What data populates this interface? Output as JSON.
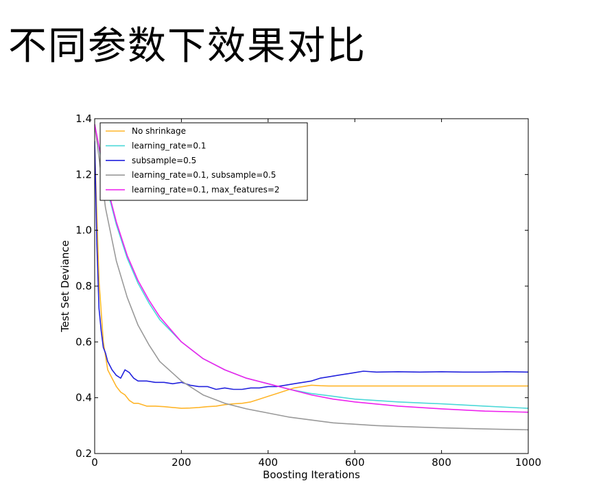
{
  "page": {
    "title": "不同参数下效果对比"
  },
  "chart_data": {
    "type": "line",
    "title": "",
    "xlabel": "Boosting Iterations",
    "ylabel": "Test Set Deviance",
    "xlim": [
      0,
      1000
    ],
    "ylim": [
      0.2,
      1.4
    ],
    "xticks": [
      0,
      200,
      400,
      600,
      800,
      1000
    ],
    "yticks": [
      0.2,
      0.4,
      0.6,
      0.8,
      1.0,
      1.2,
      1.4
    ],
    "ytick_labels": [
      "0.2",
      "0.4",
      "0.6",
      "0.8",
      "1.0",
      "1.2",
      "1.4"
    ],
    "grid": false,
    "legend_position": "top-left",
    "series": [
      {
        "name": "No shrinkage",
        "color": "#FFB529",
        "x": [
          0,
          10,
          20,
          30,
          40,
          50,
          60,
          70,
          80,
          90,
          100,
          120,
          140,
          160,
          180,
          200,
          220,
          240,
          260,
          280,
          300,
          320,
          340,
          360,
          380,
          400,
          420,
          440,
          460,
          480,
          500,
          520,
          540,
          560,
          600,
          700,
          800,
          900,
          1000
        ],
        "y": [
          1.3,
          0.82,
          0.6,
          0.5,
          0.47,
          0.44,
          0.42,
          0.41,
          0.39,
          0.38,
          0.38,
          0.37,
          0.37,
          0.368,
          0.365,
          0.362,
          0.363,
          0.365,
          0.368,
          0.37,
          0.375,
          0.378,
          0.38,
          0.385,
          0.395,
          0.405,
          0.415,
          0.425,
          0.435,
          0.44,
          0.445,
          0.443,
          0.442,
          0.442,
          0.442,
          0.442,
          0.442,
          0.442,
          0.442
        ]
      },
      {
        "name": "learning_rate=0.1",
        "color": "#4BD8D8",
        "x": [
          0,
          25,
          50,
          75,
          100,
          125,
          150,
          200,
          250,
          300,
          350,
          400,
          450,
          500,
          550,
          600,
          700,
          800,
          900,
          1000
        ],
        "y": [
          1.38,
          1.17,
          1.02,
          0.9,
          0.81,
          0.74,
          0.68,
          0.6,
          0.54,
          0.5,
          0.47,
          0.45,
          0.43,
          0.415,
          0.405,
          0.395,
          0.385,
          0.378,
          0.37,
          0.362
        ]
      },
      {
        "name": "subsample=0.5",
        "color": "#2222DD",
        "x": [
          0,
          5,
          10,
          15,
          20,
          25,
          30,
          40,
          50,
          60,
          70,
          80,
          90,
          100,
          120,
          140,
          160,
          180,
          200,
          220,
          240,
          260,
          280,
          300,
          320,
          340,
          360,
          380,
          400,
          420,
          440,
          460,
          480,
          500,
          520,
          540,
          560,
          580,
          600,
          620,
          650,
          700,
          750,
          800,
          850,
          900,
          950,
          1000
        ],
        "y": [
          1.32,
          0.95,
          0.72,
          0.64,
          0.58,
          0.56,
          0.53,
          0.5,
          0.48,
          0.47,
          0.5,
          0.49,
          0.47,
          0.46,
          0.46,
          0.455,
          0.455,
          0.45,
          0.455,
          0.445,
          0.44,
          0.44,
          0.43,
          0.435,
          0.43,
          0.43,
          0.435,
          0.435,
          0.44,
          0.44,
          0.445,
          0.45,
          0.455,
          0.46,
          0.47,
          0.475,
          0.48,
          0.485,
          0.49,
          0.495,
          0.492,
          0.493,
          0.492,
          0.493,
          0.492,
          0.492,
          0.493,
          0.492
        ]
      },
      {
        "name": "learning_rate=0.1, subsample=0.5",
        "color": "#999999",
        "x": [
          0,
          25,
          50,
          75,
          100,
          125,
          150,
          200,
          250,
          300,
          350,
          400,
          450,
          500,
          550,
          600,
          650,
          700,
          800,
          900,
          1000
        ],
        "y": [
          1.38,
          1.08,
          0.89,
          0.76,
          0.66,
          0.59,
          0.53,
          0.46,
          0.41,
          0.38,
          0.36,
          0.345,
          0.33,
          0.32,
          0.31,
          0.305,
          0.3,
          0.297,
          0.292,
          0.288,
          0.285
        ]
      },
      {
        "name": "learning_rate=0.1, max_features=2",
        "color": "#EE22EE",
        "x": [
          0,
          25,
          50,
          75,
          100,
          125,
          150,
          200,
          250,
          300,
          350,
          400,
          450,
          500,
          550,
          600,
          700,
          800,
          900,
          1000
        ],
        "y": [
          1.38,
          1.18,
          1.03,
          0.91,
          0.82,
          0.75,
          0.69,
          0.6,
          0.54,
          0.5,
          0.47,
          0.45,
          0.43,
          0.41,
          0.395,
          0.385,
          0.37,
          0.36,
          0.352,
          0.348
        ]
      }
    ]
  }
}
